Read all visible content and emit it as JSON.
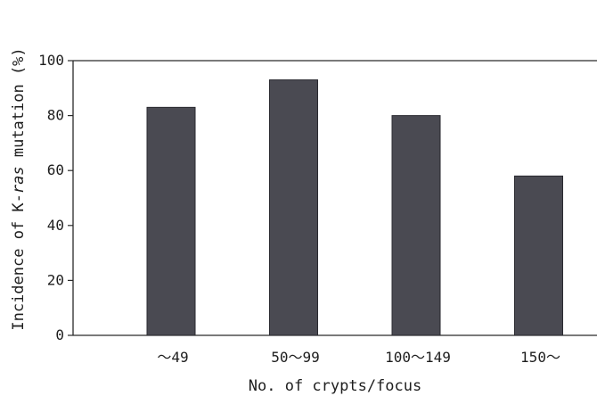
{
  "chart_data": {
    "type": "bar",
    "title": "",
    "categories": [
      "～49",
      "50～99",
      "100～149",
      "150～"
    ],
    "values": [
      83,
      93,
      80,
      58
    ],
    "xlabel": "No. of crypts/focus",
    "ylabel": "Incidence of K-ras mutation (%)",
    "ylabel_parts": [
      "Incidence of K-",
      "ras",
      " mutation (%)"
    ],
    "ylim": [
      0,
      100
    ],
    "yticks": [
      0,
      20,
      40,
      60,
      80,
      100
    ],
    "grid": false,
    "legend": "none",
    "bar_color": "#4a4a52"
  }
}
